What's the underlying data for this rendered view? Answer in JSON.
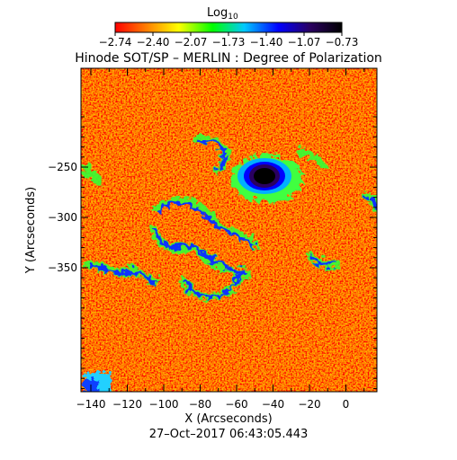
{
  "colorbar": {
    "label_base": "Log",
    "label_subscript": "10",
    "ticks": [
      "−2.74",
      "−2.40",
      "−2.07",
      "−1.73",
      "−1.40",
      "−1.07",
      "−0.73"
    ],
    "gradient_colors": [
      "#ff0000",
      "#ff8000",
      "#ffff00",
      "#00ff00",
      "#00c8ff",
      "#0000ff",
      "#2a0060",
      "#000000"
    ]
  },
  "title": "Hinode SOT/SP – MERLIN : Degree of Polarization",
  "axes": {
    "xlabel": "X (Arcseconds)",
    "ylabel": "Y (Arcseconds)",
    "xticks": [
      "−140",
      "−120",
      "−100",
      "−80",
      "−60",
      "−40",
      "−20",
      "0"
    ],
    "yticks": [
      "−250",
      "−300",
      "−350"
    ]
  },
  "timestamp": "27–Oct–2017 06:43:05.443",
  "image": {
    "kind": "solar polarization map",
    "background_color": "#ff2a00",
    "noise_colors": [
      "#ff0000",
      "#ff3000",
      "#ff6000",
      "#ff9000",
      "#ffc000",
      "#ffff00"
    ]
  }
}
